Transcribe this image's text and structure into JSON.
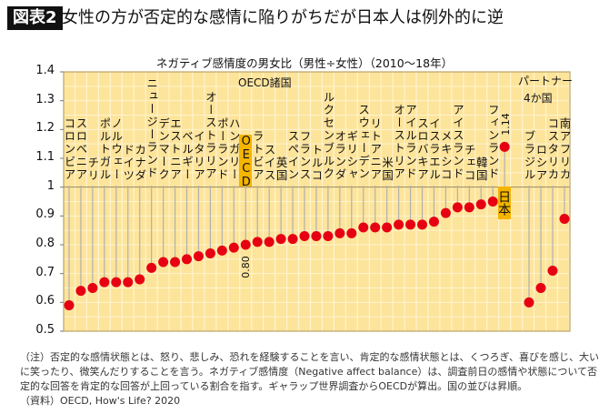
{
  "header": {
    "badge": "図表2",
    "title": "女性の方が否定的な感情に陥りがちだが日本人は例外的に逆"
  },
  "chart_data": {
    "type": "scatter",
    "title": "ネガティブ感情度の男女比（男性÷女性）（2010〜18年）",
    "ylim": [
      0.5,
      1.4
    ],
    "yticks": [
      "0.5",
      "0.6",
      "0.7",
      "0.8",
      "0.9",
      "1",
      "1.1",
      "1.2",
      "1.3",
      "1.4"
    ],
    "grid": true,
    "reference_line": 1,
    "groups": [
      {
        "label": "OECD諸国",
        "points": [
          {
            "name": "コロンビア",
            "value": 0.59
          },
          {
            "name": "スロベニア",
            "value": 0.64
          },
          {
            "name": "チリ",
            "value": 0.65
          },
          {
            "name": "ポルトガル",
            "value": 0.67
          },
          {
            "name": "ノルウェー",
            "value": 0.67
          },
          {
            "name": "ドイツ",
            "value": 0.67
          },
          {
            "name": "カナダ",
            "value": 0.68
          },
          {
            "name": "ニュージーランド",
            "value": 0.72
          },
          {
            "name": "デンマーク",
            "value": 0.74
          },
          {
            "name": "エストニア",
            "value": 0.74
          },
          {
            "name": "ベルギー",
            "value": 0.75
          },
          {
            "name": "イタリア",
            "value": 0.76
          },
          {
            "name": "オーストラリア",
            "value": 0.77
          },
          {
            "name": "ポーランド",
            "value": 0.78
          },
          {
            "name": "ハンガリー",
            "value": 0.79
          },
          {
            "name": "OECD",
            "value": 0.8,
            "highlight": true,
            "value_label": "0.80"
          },
          {
            "name": "ラトビア",
            "value": 0.81
          },
          {
            "name": "スイス",
            "value": 0.81
          },
          {
            "name": "英国",
            "value": 0.82
          },
          {
            "name": "スペイン",
            "value": 0.82
          },
          {
            "name": "フランス",
            "value": 0.83
          },
          {
            "name": "トルコ",
            "value": 0.83
          },
          {
            "name": "ルクセンブルク",
            "value": 0.83
          },
          {
            "name": "オランダ",
            "value": 0.84
          },
          {
            "name": "ギリシャ",
            "value": 0.84
          },
          {
            "name": "スウェーデン",
            "value": 0.86
          },
          {
            "name": "リトアニア",
            "value": 0.86
          },
          {
            "name": "米国",
            "value": 0.86
          },
          {
            "name": "オーストリア",
            "value": 0.87
          },
          {
            "name": "アイルランド",
            "value": 0.87
          },
          {
            "name": "スロバキア",
            "value": 0.87
          },
          {
            "name": "イスラエル",
            "value": 0.88
          },
          {
            "name": "メキシコ",
            "value": 0.91
          },
          {
            "name": "アイスランド",
            "value": 0.93
          },
          {
            "name": "チェコ",
            "value": 0.93
          },
          {
            "name": "韓国",
            "value": 0.94
          },
          {
            "name": "フィンランド",
            "value": 0.95
          },
          {
            "name": "日本",
            "value": 1.14,
            "highlight": true,
            "value_label": "1.14"
          }
        ]
      },
      {
        "label": "パートナー4か国",
        "label_lines": [
          "パートナー",
          "4か国"
        ],
        "points": [
          {
            "name": "ブラジル",
            "value": 0.6
          },
          {
            "name": "ロシア",
            "value": 0.65
          },
          {
            "name": "コスタリカ",
            "value": 0.71
          },
          {
            "name": "南アフリカ",
            "value": 0.89
          }
        ]
      }
    ],
    "colors": {
      "plot_bg": "#fde49b",
      "grid": "#fff4cf",
      "dot": "#e60012",
      "highlight_box": "#f5b400",
      "stem": "#b0b0b0"
    }
  },
  "notes": [
    "（注）否定的な感情状態とは、怒り、悲しみ、恐れを経験することを言い、肯定的な感情状態とは、くつろぎ、喜びを感じ、大いに笑ったり、微笑んだりすることを言う。ネガティブ感情度（Negative affect balance）は、調査前日の感情や状態について否定的な回答を肯定的な回答が上回っている割合を指す。ギャラップ世界調査からOECDが算出。国の並びは昇順。",
    "（資料）OECD, How's Life? 2020"
  ]
}
